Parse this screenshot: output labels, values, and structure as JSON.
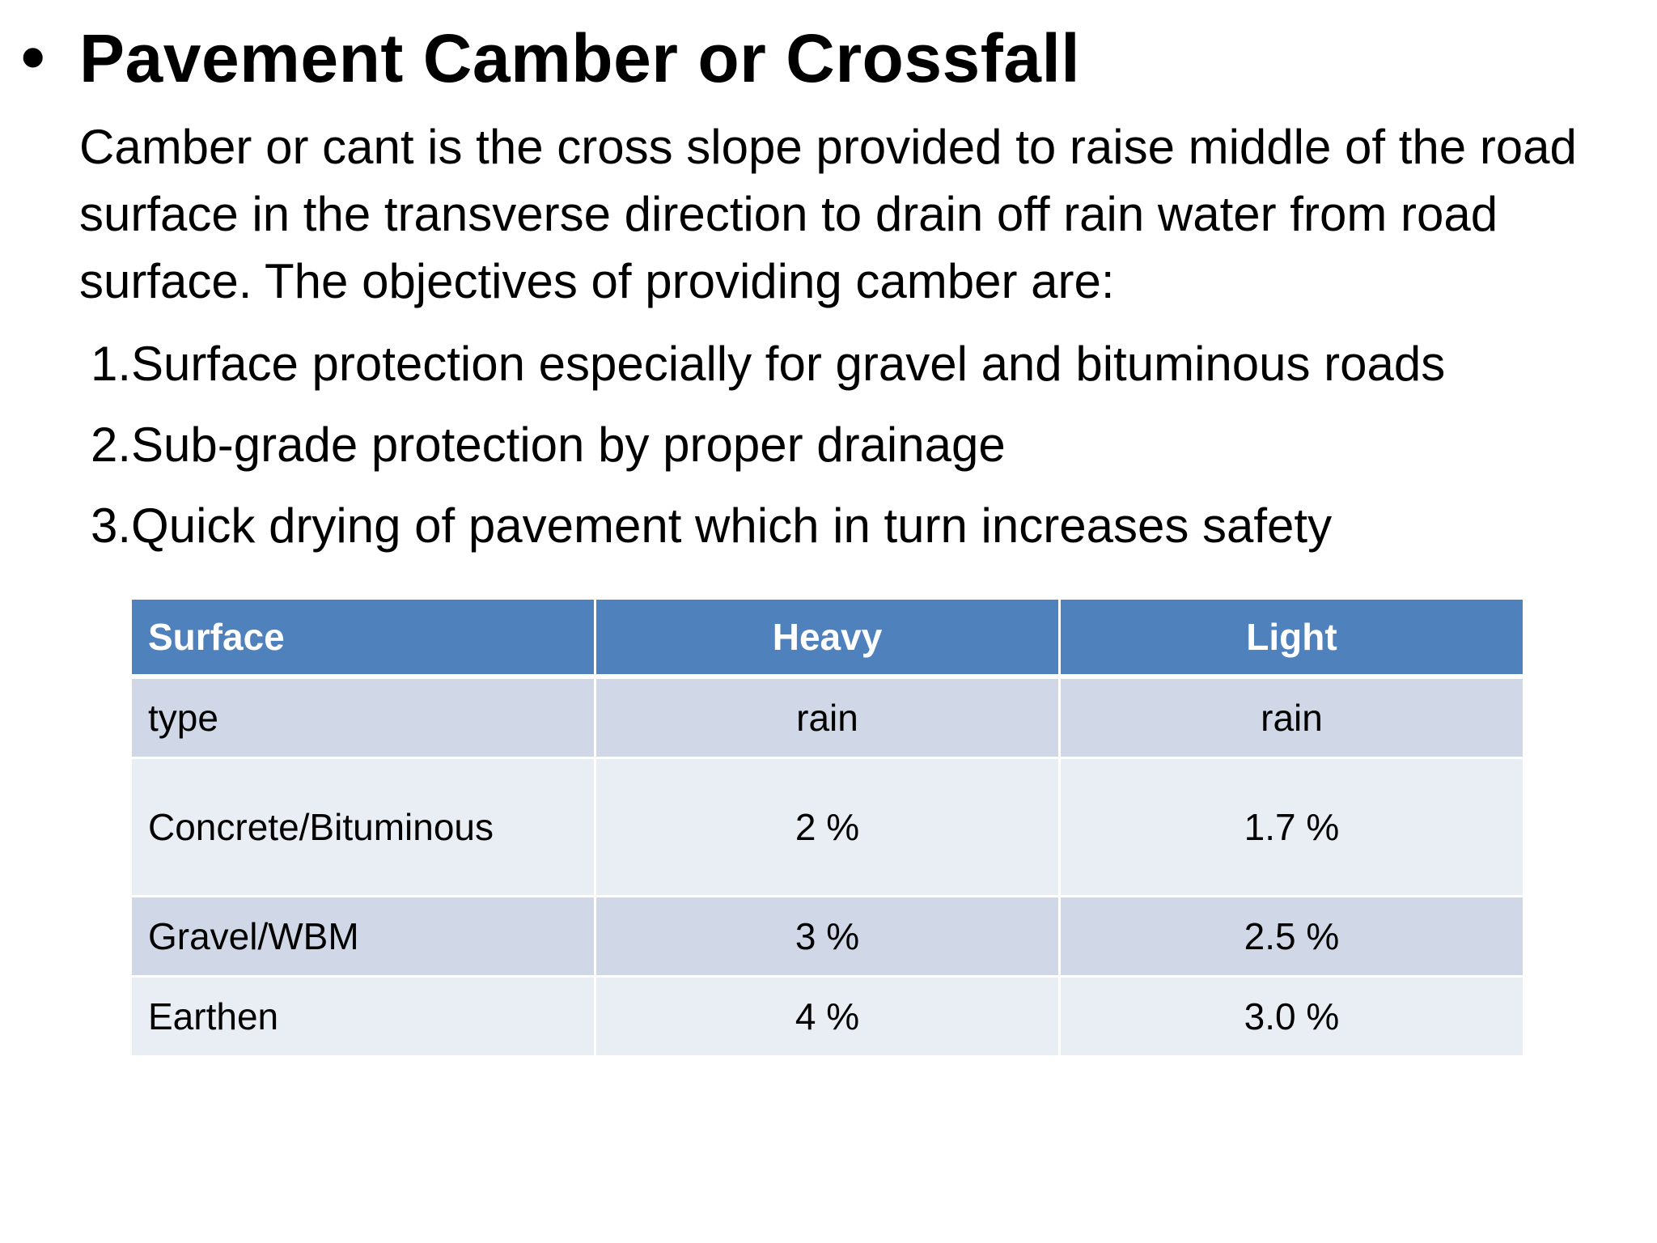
{
  "slide": {
    "bullet_glyph": "•",
    "title": "Pavement Camber or Crossfall",
    "intro": "Camber or cant is the cross slope provided to raise middle of the road surface in the transverse direction to drain off rain water from road surface. The objectives of providing camber are:",
    "objectives": [
      "1.Surface protection especially for gravel and bituminous roads",
      "2.Sub-grade protection by proper drainage",
      "3.Quick drying of pavement which in turn increases safety"
    ]
  },
  "table": {
    "headers": [
      "Surface",
      "Heavy",
      "Light"
    ],
    "rows": [
      [
        "type",
        "rain",
        "rain"
      ],
      [
        "Concrete/Bituminous",
        "2 %",
        "1.7 %"
      ],
      [
        "Gravel/WBM",
        "3 %",
        "2.5 %"
      ],
      [
        "Earthen",
        "4 %",
        "3.0 %"
      ]
    ],
    "colors": {
      "header_bg": "#4f81bd",
      "row_dark": "#d0d8e8",
      "row_light": "#e9edf4"
    }
  }
}
